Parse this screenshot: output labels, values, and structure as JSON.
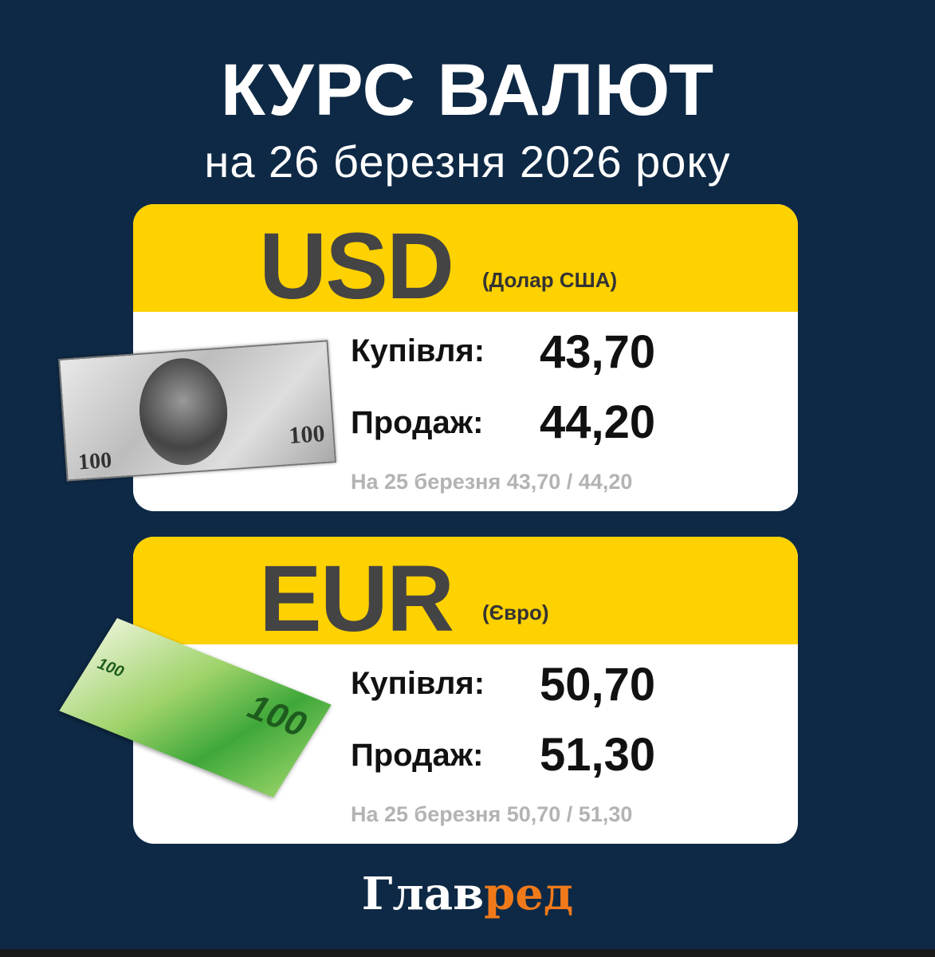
{
  "header": {
    "title": "КУРС ВАЛЮТ",
    "subtitle": "на 26 березня 2026 року"
  },
  "colors": {
    "background": "#0e2945",
    "accent": "#fed100",
    "logo_accent": "#f07a1a"
  },
  "currencies": [
    {
      "code": "USD",
      "name": "(Долар США)",
      "buy_label": "Купівля:",
      "buy": "43,70",
      "sell_label": "Продаж:",
      "sell": "44,20",
      "previous": "На 25 березня 43,70 / 44,20",
      "image": "100-dollar-banknote",
      "note_text": "100"
    },
    {
      "code": "EUR",
      "name": "(Євро)",
      "buy_label": "Купівля:",
      "buy": "50,70",
      "sell_label": "Продаж:",
      "sell": "51,30",
      "previous": "На 25 березня 50,70 / 51,30",
      "image": "100-euro-banknote",
      "note_text": "100"
    }
  ],
  "logo": {
    "part1": "Глав",
    "part2": "ред"
  }
}
